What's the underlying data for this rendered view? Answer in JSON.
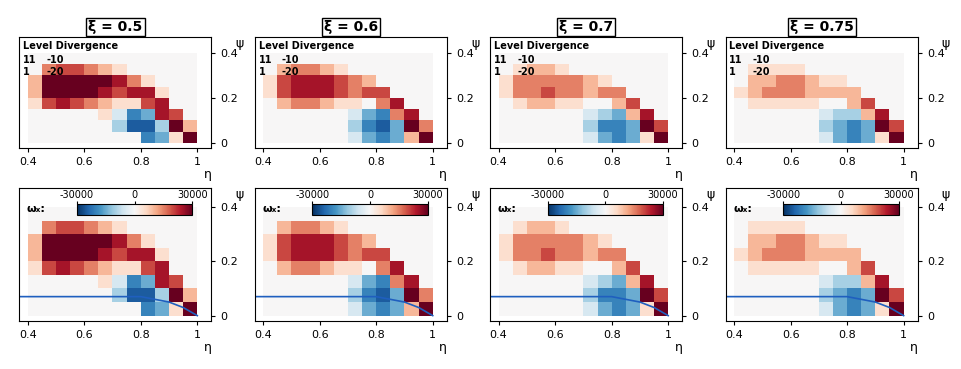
{
  "chart_data": {
    "type": "heatmap",
    "xlabel": "η",
    "ylabel": "ψ",
    "xlim": [
      0.37,
      1.05
    ],
    "ylim": [
      -0.02,
      0.47
    ],
    "xticks": [
      0.4,
      0.6,
      0.8,
      1
    ],
    "yticks": [
      0,
      0.2,
      0.4
    ],
    "tick_labels": true,
    "legend_title": "Level Divergence",
    "legend_levels": [
      [
        11,
        -10
      ],
      [
        1,
        -20
      ]
    ],
    "colorbar_label": "ωₓ:",
    "colorbar_range": [
      -30000,
      30000
    ],
    "colorbar_ticks": [
      -30000,
      0,
      30000
    ],
    "eta_edges": [
      0.4,
      0.45,
      0.5,
      0.55,
      0.6,
      0.65,
      0.7,
      0.75,
      0.8,
      0.85,
      0.9,
      0.95,
      1.0
    ],
    "psi_edges": [
      0,
      0.05,
      0.1,
      0.15,
      0.2,
      0.25,
      0.3,
      0.35,
      0.4
    ],
    "wall": {
      "x": [
        0.37,
        0.8,
        0.9,
        0.95,
        1.0
      ],
      "y": [
        0.07,
        0.07,
        0.05,
        0.03,
        0
      ],
      "color": "#1f5fbf"
    },
    "panels": [
      {
        "title": "ξ = 0.5",
        "cells": [
          [
            0,
            0,
            0,
            0,
            0,
            0,
            0,
            0,
            -20000,
            -15000,
            5000,
            30000
          ],
          [
            0,
            0,
            0,
            0,
            0,
            0,
            -10000,
            -25000,
            -25000,
            -10000,
            30000,
            10000
          ],
          [
            0,
            0,
            0,
            0,
            0,
            5000,
            -5000,
            -20000,
            -15000,
            25000,
            20000,
            0
          ],
          [
            5000,
            20000,
            25000,
            20000,
            15000,
            10000,
            5000,
            5000,
            20000,
            25000,
            0,
            0
          ],
          [
            10000,
            30000,
            30000,
            30000,
            30000,
            25000,
            20000,
            25000,
            25000,
            5000,
            0,
            0
          ],
          [
            10000,
            30000,
            30000,
            30000,
            30000,
            30000,
            25000,
            15000,
            5000,
            0,
            0,
            0
          ],
          [
            0,
            15000,
            20000,
            20000,
            15000,
            10000,
            5000,
            0,
            0,
            0,
            0,
            0
          ],
          [
            0,
            0,
            0,
            0,
            0,
            0,
            0,
            0,
            0,
            0,
            0,
            0
          ]
        ]
      },
      {
        "title": "ξ = 0.6",
        "cells": [
          [
            0,
            0,
            0,
            0,
            0,
            0,
            -5000,
            -15000,
            -20000,
            -15000,
            10000,
            30000
          ],
          [
            0,
            0,
            0,
            0,
            0,
            0,
            -10000,
            -20000,
            -25000,
            -15000,
            30000,
            15000
          ],
          [
            0,
            0,
            0,
            0,
            0,
            0,
            -5000,
            -15000,
            -20000,
            15000,
            25000,
            0
          ],
          [
            0,
            10000,
            15000,
            15000,
            10000,
            5000,
            5000,
            0,
            15000,
            25000,
            0,
            0
          ],
          [
            5000,
            20000,
            25000,
            25000,
            25000,
            20000,
            15000,
            20000,
            20000,
            0,
            0,
            0
          ],
          [
            5000,
            20000,
            25000,
            25000,
            25000,
            20000,
            15000,
            10000,
            0,
            0,
            0,
            0
          ],
          [
            0,
            10000,
            15000,
            15000,
            10000,
            5000,
            0,
            0,
            0,
            0,
            0,
            0
          ],
          [
            0,
            0,
            0,
            0,
            0,
            0,
            0,
            0,
            0,
            0,
            0,
            0
          ]
        ]
      },
      {
        "title": "ξ = 0.7",
        "cells": [
          [
            0,
            0,
            0,
            0,
            0,
            0,
            -5000,
            -15000,
            -20000,
            -15000,
            5000,
            30000
          ],
          [
            0,
            0,
            0,
            0,
            0,
            0,
            -10000,
            -20000,
            -20000,
            -15000,
            30000,
            20000
          ],
          [
            0,
            0,
            0,
            0,
            0,
            0,
            -5000,
            -10000,
            -15000,
            10000,
            25000,
            0
          ],
          [
            0,
            5000,
            10000,
            10000,
            5000,
            5000,
            0,
            0,
            10000,
            20000,
            0,
            0
          ],
          [
            5000,
            15000,
            15000,
            20000,
            15000,
            15000,
            10000,
            15000,
            15000,
            0,
            0,
            0
          ],
          [
            5000,
            15000,
            15000,
            15000,
            15000,
            15000,
            10000,
            5000,
            0,
            0,
            0,
            0
          ],
          [
            0,
            5000,
            10000,
            10000,
            5000,
            0,
            0,
            0,
            0,
            0,
            0,
            0
          ],
          [
            0,
            0,
            0,
            0,
            0,
            0,
            0,
            0,
            0,
            0,
            0,
            0
          ]
        ]
      },
      {
        "title": "ξ = 0.75",
        "cells": [
          [
            0,
            0,
            0,
            0,
            0,
            0,
            -5000,
            -15000,
            -20000,
            -15000,
            5000,
            30000
          ],
          [
            0,
            0,
            0,
            0,
            0,
            0,
            -10000,
            -15000,
            -20000,
            -15000,
            30000,
            20000
          ],
          [
            0,
            0,
            0,
            0,
            0,
            0,
            -5000,
            -10000,
            -10000,
            10000,
            25000,
            0
          ],
          [
            0,
            5000,
            5000,
            5000,
            5000,
            5000,
            0,
            0,
            10000,
            20000,
            0,
            0
          ],
          [
            5000,
            10000,
            15000,
            15000,
            15000,
            10000,
            10000,
            10000,
            10000,
            0,
            0,
            0
          ],
          [
            0,
            10000,
            10000,
            15000,
            15000,
            10000,
            5000,
            5000,
            0,
            0,
            0,
            0
          ],
          [
            0,
            5000,
            5000,
            5000,
            5000,
            0,
            0,
            0,
            0,
            0,
            0,
            0
          ],
          [
            0,
            0,
            0,
            0,
            0,
            0,
            0,
            0,
            0,
            0,
            0,
            0
          ]
        ]
      }
    ]
  }
}
